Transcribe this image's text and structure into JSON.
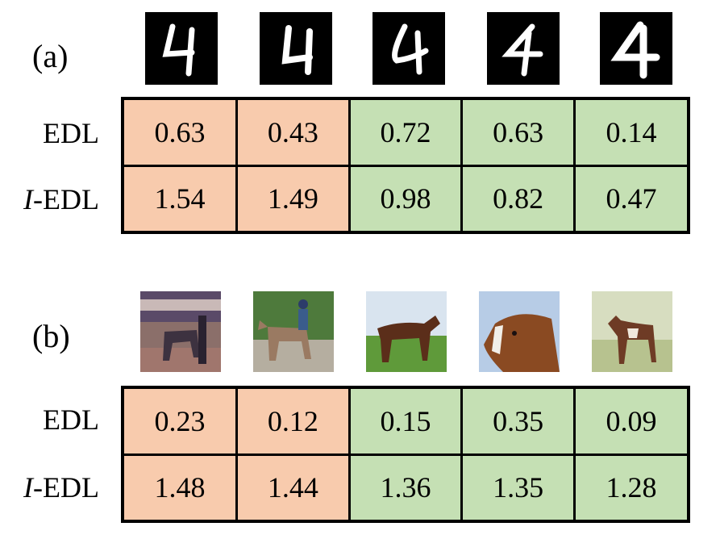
{
  "colors": {
    "misclassified": "#f8cbad",
    "correct": "#c5e0b4"
  },
  "panels": [
    {
      "label": "(a)",
      "images": [
        "digit-4-image",
        "digit-4-image",
        "digit-4-image",
        "digit-4-image",
        "digit-4-image"
      ],
      "rows": [
        {
          "label_prefix": "",
          "label_main": "EDL",
          "values": [
            "0.63",
            "0.43",
            "0.72",
            "0.63",
            "0.14"
          ]
        },
        {
          "label_prefix": "I",
          "label_main": "-EDL",
          "values": [
            "1.54",
            "1.49",
            "0.98",
            "0.82",
            "0.47"
          ]
        }
      ],
      "cell_status": [
        "misclassified",
        "misclassified",
        "correct",
        "correct",
        "correct"
      ]
    },
    {
      "label": "(b)",
      "images": [
        "horse-photo",
        "horse-photo",
        "horse-photo",
        "horse-photo",
        "horse-photo"
      ],
      "rows": [
        {
          "label_prefix": "",
          "label_main": "EDL",
          "values": [
            "0.23",
            "0.12",
            "0.15",
            "0.35",
            "0.09"
          ]
        },
        {
          "label_prefix": "I",
          "label_main": "-EDL",
          "values": [
            "1.48",
            "1.44",
            "1.36",
            "1.35",
            "1.28"
          ]
        }
      ],
      "cell_status": [
        "misclassified",
        "misclassified",
        "correct",
        "correct",
        "correct"
      ]
    }
  ]
}
